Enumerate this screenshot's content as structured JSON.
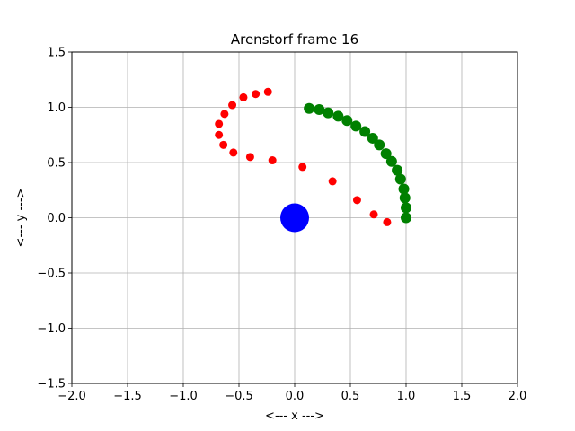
{
  "chart_data": {
    "type": "scatter",
    "title": "Arenstorf frame 16",
    "xlabel": "<---  x  --->",
    "ylabel": "<---  y  --->",
    "xlim": [
      -2.0,
      2.0
    ],
    "ylim": [
      -1.5,
      1.5
    ],
    "xticks": [
      -2.0,
      -1.5,
      -1.0,
      -0.5,
      0.0,
      0.5,
      1.0,
      1.5,
      2.0
    ],
    "yticks": [
      -1.5,
      -1.0,
      -0.5,
      0.0,
      0.5,
      1.0,
      1.5
    ],
    "xtick_labels": [
      "−2.0",
      "−1.5",
      "−1.0",
      "−0.5",
      "0.0",
      "0.5",
      "1.0",
      "1.5",
      "2.0"
    ],
    "ytick_labels": [
      "−1.5",
      "−1.0",
      "−0.5",
      "0.0",
      "0.5",
      "1.0",
      "1.5"
    ],
    "grid": true,
    "series": [
      {
        "color": "#ff0000",
        "marker": "small-circle",
        "points": [
          [
            1.0,
            0.0
          ],
          [
            0.83,
            -0.04
          ],
          [
            0.71,
            0.03
          ],
          [
            0.56,
            0.16
          ],
          [
            0.34,
            0.33
          ],
          [
            0.07,
            0.46
          ],
          [
            -0.2,
            0.52
          ],
          [
            -0.4,
            0.55
          ],
          [
            -0.55,
            0.59
          ],
          [
            -0.64,
            0.66
          ],
          [
            -0.68,
            0.75
          ],
          [
            -0.68,
            0.85
          ],
          [
            -0.63,
            0.94
          ],
          [
            -0.56,
            1.02
          ],
          [
            -0.46,
            1.09
          ],
          [
            -0.35,
            1.12
          ],
          [
            -0.24,
            1.14
          ]
        ]
      },
      {
        "color": "#008000",
        "marker": "large-circle",
        "points": [
          [
            1.0,
            0.0
          ],
          [
            1.0,
            0.09
          ],
          [
            0.99,
            0.18
          ],
          [
            0.98,
            0.26
          ],
          [
            0.95,
            0.35
          ],
          [
            0.92,
            0.43
          ],
          [
            0.87,
            0.51
          ],
          [
            0.82,
            0.58
          ],
          [
            0.76,
            0.66
          ],
          [
            0.7,
            0.72
          ],
          [
            0.63,
            0.78
          ],
          [
            0.55,
            0.83
          ],
          [
            0.47,
            0.88
          ],
          [
            0.39,
            0.92
          ],
          [
            0.3,
            0.95
          ],
          [
            0.22,
            0.98
          ],
          [
            0.13,
            0.99
          ]
        ]
      },
      {
        "color": "#0000ff",
        "marker": "big-circle",
        "points": [
          [
            0.0,
            0.0
          ]
        ]
      }
    ]
  }
}
